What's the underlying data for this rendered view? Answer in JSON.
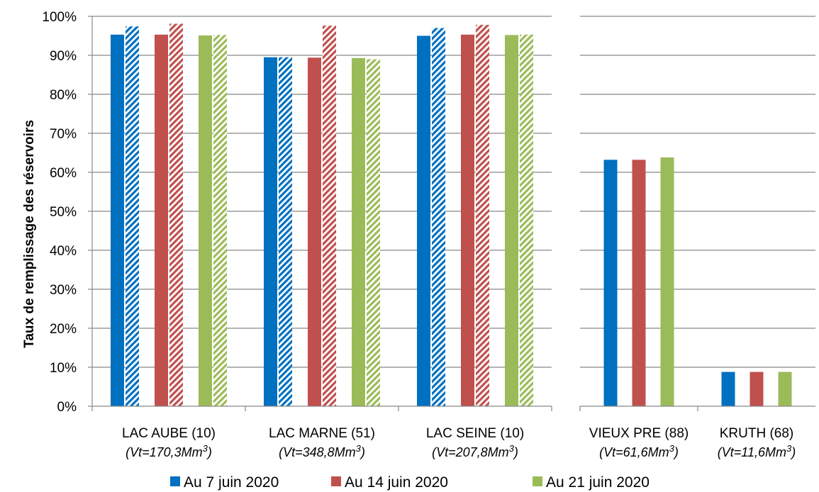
{
  "chart_data": {
    "type": "bar",
    "ylabel": "Taux de remplissage des réservoirs",
    "ylim": [
      0,
      100
    ],
    "yticks": [
      "0%",
      "10%",
      "20%",
      "30%",
      "40%",
      "50%",
      "60%",
      "70%",
      "80%",
      "90%",
      "100%"
    ],
    "grid": true,
    "legend_position": "bottom",
    "series": [
      {
        "name": "Au 7 juin 2020",
        "color": "#0070c0"
      },
      {
        "name": "Au 14 juin 2020",
        "color": "#c0504d"
      },
      {
        "name": "Au 21 juin 2020",
        "color": "#9bbb59"
      }
    ],
    "categories": [
      {
        "label": "LAC AUBE (10)",
        "volume": "Vt=170,3Mm",
        "unit_exp": "3",
        "panel": 1,
        "solid": [
          95.3,
          95.3,
          95.1
        ],
        "hatched": [
          97.4,
          98.1,
          95.2
        ]
      },
      {
        "label": "LAC MARNE (51)",
        "volume": "Vt=348,8Mm",
        "unit_exp": "3",
        "panel": 1,
        "solid": [
          89.5,
          89.4,
          89.3
        ],
        "hatched": [
          89.5,
          97.6,
          89.0
        ]
      },
      {
        "label": "LAC SEINE (10)",
        "volume": "Vt=207,8Mm",
        "unit_exp": "3",
        "panel": 1,
        "solid": [
          95.0,
          95.3,
          95.2
        ],
        "hatched": [
          97.0,
          97.8,
          95.3
        ]
      },
      {
        "label": "VIEUX PRE (88)",
        "volume": "Vt=61,6Mm",
        "unit_exp": "3",
        "panel": 2,
        "solid": [
          63.2,
          63.2,
          63.8
        ],
        "hatched": []
      },
      {
        "label": "KRUTH (68)",
        "volume": "Vt=11,6Mm",
        "unit_exp": "3",
        "panel": 2,
        "solid": [
          8.8,
          8.8,
          8.8
        ],
        "hatched": []
      }
    ]
  }
}
